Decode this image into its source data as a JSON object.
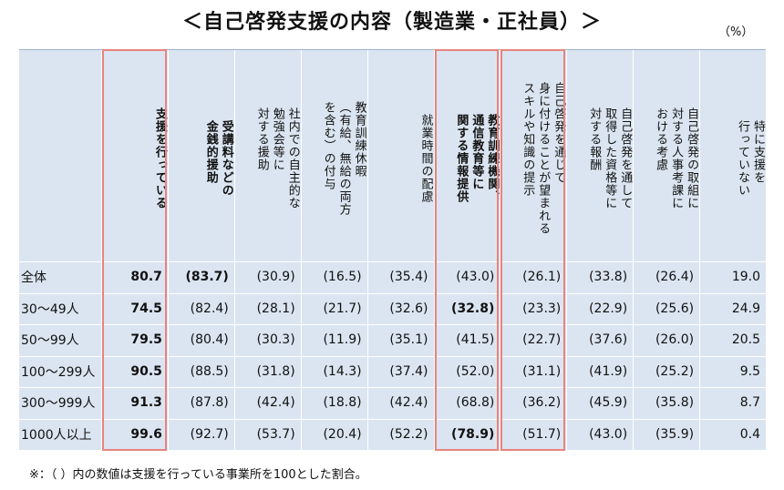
{
  "title": "＜自己啓発支援の内容（製造業・正社員）＞",
  "unit_label": "（%）",
  "chart_data": {
    "type": "table",
    "columns": [
      {
        "label": "支援を行っている",
        "bold": true
      },
      {
        "label": "受講料などの\n金銭的援助",
        "bold": true
      },
      {
        "label": "社内での自主的な\n勉強会等に\n対する援助",
        "bold": false
      },
      {
        "label": "教育訓練休暇\n（有給、無給の両方\nを含む）の付与",
        "bold": false
      },
      {
        "label": "就業時間の配慮",
        "bold": false
      },
      {
        "label": "教育訓練機関、\n通信教育等に\n関する情報提供",
        "bold": true
      },
      {
        "label": "自己啓発を通じて\n身に付けることが望まれる\nスキルや知識の提示",
        "bold": false
      },
      {
        "label": "自己啓発を通して\n取得した資格等に\n対する報酬",
        "bold": false
      },
      {
        "label": "自己啓発の取組に\n対する人事考課に\nおける考慮",
        "bold": false
      },
      {
        "label": "特に支援を\n行っていない",
        "bold": false
      }
    ],
    "rows": [
      {
        "label": "全体",
        "values": [
          "80.7",
          "(83.7)",
          "(30.9)",
          "(16.5)",
          "(35.4)",
          "(43.0)",
          "(26.1)",
          "(33.8)",
          "(26.4)",
          "19.0"
        ],
        "bold": [
          true,
          true,
          false,
          false,
          false,
          false,
          false,
          false,
          false,
          false
        ]
      },
      {
        "label": "30～49人",
        "values": [
          "74.5",
          "(82.4)",
          "(28.1)",
          "(21.7)",
          "(32.6)",
          "(32.8)",
          "(23.3)",
          "(22.9)",
          "(25.6)",
          "24.9"
        ],
        "bold": [
          true,
          false,
          false,
          false,
          false,
          true,
          false,
          false,
          false,
          false
        ]
      },
      {
        "label": "50～99人",
        "values": [
          "79.5",
          "(80.4)",
          "(30.3)",
          "(11.9)",
          "(35.1)",
          "(41.5)",
          "(22.7)",
          "(37.6)",
          "(26.0)",
          "20.5"
        ],
        "bold": [
          true,
          false,
          false,
          false,
          false,
          false,
          false,
          false,
          false,
          false
        ]
      },
      {
        "label": "100～299人",
        "values": [
          "90.5",
          "(88.5)",
          "(31.8)",
          "(14.3)",
          "(37.4)",
          "(52.0)",
          "(31.1)",
          "(41.9)",
          "(25.2)",
          "9.5"
        ],
        "bold": [
          true,
          false,
          false,
          false,
          false,
          false,
          false,
          false,
          false,
          false
        ]
      },
      {
        "label": "300～999人",
        "values": [
          "91.3",
          "(87.8)",
          "(42.4)",
          "(18.8)",
          "(42.4)",
          "(68.8)",
          "(36.2)",
          "(45.9)",
          "(35.8)",
          "8.7"
        ],
        "bold": [
          true,
          false,
          false,
          false,
          false,
          false,
          false,
          false,
          false,
          false
        ]
      },
      {
        "label": "1000人以上",
        "values": [
          "99.6",
          "(92.7)",
          "(53.7)",
          "(20.4)",
          "(52.2)",
          "(78.9)",
          "(51.7)",
          "(43.0)",
          "(35.9)",
          "0.4"
        ],
        "bold": [
          true,
          false,
          false,
          false,
          false,
          true,
          false,
          false,
          false,
          false
        ]
      }
    ],
    "highlighted_columns": [
      0,
      5,
      6
    ],
    "highlight_color": "#e8837d",
    "cell_background": "#dbe5f1",
    "grid_color": "#ffffff"
  },
  "footnote": "※：（ ）内の数値は支援を行っている事業所を100とした割合。"
}
